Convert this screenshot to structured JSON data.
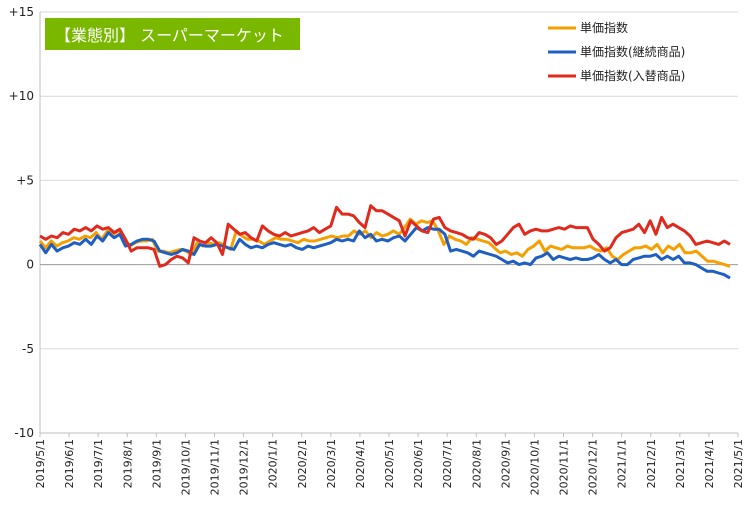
{
  "chart_data": {
    "type": "line",
    "title": "【業態別】 スーパーマーケット",
    "title_color": "#7ab800",
    "y_ticks": [
      "+15",
      "+10",
      "+5",
      "0",
      "-5",
      "-10"
    ],
    "ylim": [
      -10,
      15
    ],
    "grid": true,
    "legend_position": "top-right",
    "x_ticks": [
      "2019/5/1",
      "2019/6/1",
      "2019/7/1",
      "2019/8/1",
      "2019/9/1",
      "2019/10/1",
      "2019/11/1",
      "2019/12/1",
      "2020/1/1",
      "2020/2/1",
      "2020/3/1",
      "2020/4/1",
      "2020/5/1",
      "2020/6/1",
      "2020/7/1",
      "2020/8/1",
      "2020/9/1",
      "2020/10/1",
      "2020/11/1",
      "2020/12/1",
      "2021/1/1",
      "2021/2/1",
      "2021/3/1",
      "2021/4/1",
      "2021/5/1"
    ],
    "series": [
      {
        "name": "単価指数",
        "color": "#f5a000",
        "values": [
          1.4,
          1.0,
          1.4,
          1.1,
          1.3,
          1.4,
          1.6,
          1.5,
          1.7,
          1.6,
          1.9,
          1.5,
          2.0,
          1.8,
          2.0,
          1.6,
          1.1,
          1.3,
          1.4,
          1.4,
          1.5,
          0.8,
          0.8,
          0.7,
          0.8,
          0.9,
          0.8,
          0.6,
          1.3,
          1.1,
          1.3,
          1.2,
          1.3,
          1.1,
          0.9,
          2.0,
          1.7,
          1.5,
          1.5,
          1.4,
          1.2,
          1.4,
          1.6,
          1.5,
          1.5,
          1.4,
          1.3,
          1.5,
          1.4,
          1.4,
          1.5,
          1.6,
          1.7,
          1.6,
          1.7,
          1.7,
          2.0,
          1.8,
          2.0,
          1.6,
          1.9,
          1.7,
          1.8,
          2.0,
          1.8,
          2.2,
          2.7,
          2.4,
          2.6,
          2.5,
          2.6,
          2.0,
          1.2,
          1.7,
          1.5,
          1.4,
          1.2,
          1.6,
          1.5,
          1.4,
          1.3,
          1.0,
          0.7,
          0.8,
          0.6,
          0.7,
          0.5,
          0.9,
          1.1,
          1.4,
          0.8,
          1.1,
          1.0,
          0.9,
          1.1,
          1.0,
          1.0,
          1.0,
          1.1,
          0.9,
          0.8,
          1.0,
          0.5,
          0.3,
          0.6,
          0.8,
          1.0,
          1.0,
          1.1,
          0.9,
          1.2,
          0.7,
          1.1,
          0.9,
          1.2,
          0.7,
          0.7,
          0.8,
          0.5,
          0.2,
          0.2,
          0.1,
          0.0,
          -0.1
        ]
      },
      {
        "name": "単価指数(継続商品)",
        "color": "#1f5fc2",
        "values": [
          1.2,
          0.7,
          1.2,
          0.8,
          1.0,
          1.1,
          1.3,
          1.2,
          1.5,
          1.2,
          1.7,
          1.4,
          1.9,
          1.6,
          1.8,
          1.1,
          1.2,
          1.4,
          1.5,
          1.5,
          1.4,
          0.8,
          0.7,
          0.6,
          0.7,
          0.9,
          0.8,
          0.6,
          1.2,
          1.1,
          1.1,
          1.2,
          1.1,
          1.0,
          0.9,
          1.5,
          1.2,
          1.0,
          1.1,
          1.0,
          1.2,
          1.3,
          1.2,
          1.1,
          1.2,
          1.0,
          0.9,
          1.1,
          1.0,
          1.1,
          1.2,
          1.3,
          1.5,
          1.4,
          1.5,
          1.4,
          2.0,
          1.6,
          1.8,
          1.4,
          1.5,
          1.4,
          1.6,
          1.7,
          1.4,
          1.8,
          2.2,
          2.0,
          2.2,
          2.1,
          2.1,
          1.8,
          0.8,
          0.9,
          0.8,
          0.7,
          0.5,
          0.8,
          0.7,
          0.6,
          0.5,
          0.3,
          0.1,
          0.2,
          0.0,
          0.1,
          0.0,
          0.4,
          0.5,
          0.7,
          0.3,
          0.5,
          0.4,
          0.3,
          0.4,
          0.3,
          0.3,
          0.4,
          0.6,
          0.3,
          0.1,
          0.3,
          0.0,
          0.0,
          0.3,
          0.4,
          0.5,
          0.5,
          0.6,
          0.3,
          0.5,
          0.3,
          0.5,
          0.1,
          0.1,
          0.0,
          -0.2,
          -0.4,
          -0.4,
          -0.5,
          -0.6,
          -0.8
        ]
      },
      {
        "name": "単価指数(入替商品)",
        "color": "#e02a1e",
        "values": [
          1.7,
          1.5,
          1.7,
          1.6,
          1.9,
          1.8,
          2.1,
          2.0,
          2.2,
          2.0,
          2.3,
          2.1,
          2.2,
          1.9,
          2.1,
          1.5,
          0.8,
          1.0,
          1.0,
          1.0,
          0.9,
          -0.1,
          0.0,
          0.3,
          0.5,
          0.4,
          0.1,
          1.6,
          1.4,
          1.3,
          1.6,
          1.3,
          0.6,
          2.4,
          2.1,
          1.8,
          1.9,
          1.6,
          1.4,
          2.3,
          2.0,
          1.8,
          1.7,
          1.9,
          1.7,
          1.8,
          1.9,
          2.0,
          2.2,
          1.9,
          2.1,
          2.3,
          3.4,
          3.0,
          3.0,
          2.9,
          2.5,
          2.2,
          3.5,
          3.2,
          3.2,
          3.0,
          2.8,
          2.6,
          1.7,
          2.6,
          2.3,
          2.0,
          1.9,
          2.7,
          2.8,
          2.2,
          2.0,
          1.9,
          1.8,
          1.6,
          1.5,
          1.9,
          1.8,
          1.6,
          1.2,
          1.4,
          1.8,
          2.2,
          2.4,
          1.8,
          2.0,
          2.1,
          2.0,
          2.0,
          2.1,
          2.2,
          2.1,
          2.3,
          2.2,
          2.2,
          2.2,
          1.5,
          1.2,
          0.8,
          1.0,
          1.6,
          1.9,
          2.0,
          2.1,
          2.4,
          1.9,
          2.6,
          1.8,
          2.8,
          2.2,
          2.4,
          2.2,
          2.0,
          1.7,
          1.2,
          1.3,
          1.4,
          1.3,
          1.2,
          1.4,
          1.2
        ]
      }
    ]
  }
}
